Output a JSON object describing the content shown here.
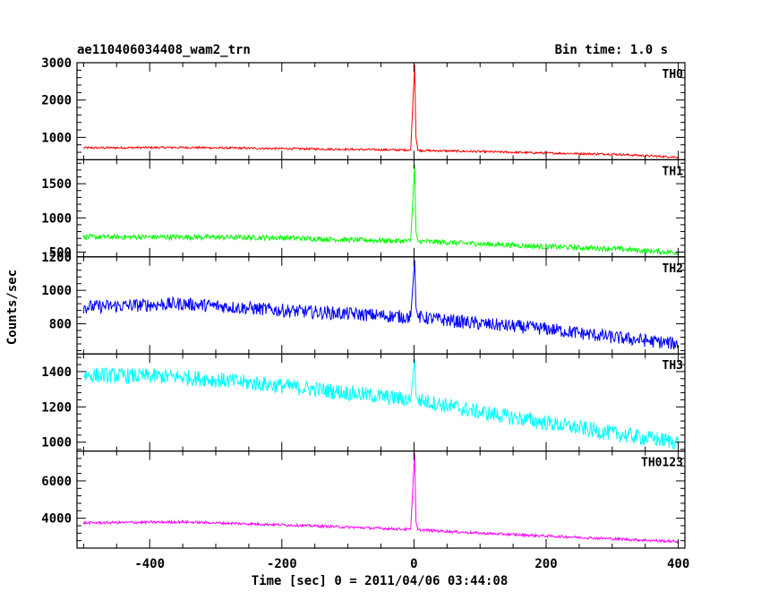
{
  "chart_data": {
    "type": "line",
    "title_left": "ae110406034408_wam2_trn",
    "title_right": "Bin time: 1.0 s",
    "xlabel": "Time [sec] 0 = 2011/04/06 03:44:08",
    "ylabel": "Counts/sec",
    "xlim": [
      -510,
      410
    ],
    "xticks": [
      -400,
      -200,
      0,
      200,
      400
    ],
    "grid": false,
    "panels": [
      {
        "name": "TH0",
        "color": "#ff0000",
        "ylim": [
          400,
          3000
        ],
        "yticks": [
          1000,
          2000,
          3000
        ],
        "points": [
          [
            -500,
            720
          ],
          [
            -350,
            730
          ],
          [
            -200,
            700
          ],
          [
            -100,
            680
          ],
          [
            -5,
            660
          ],
          [
            1,
            2950
          ],
          [
            3,
            1000
          ],
          [
            6,
            650
          ],
          [
            100,
            620
          ],
          [
            200,
            580
          ],
          [
            300,
            550
          ],
          [
            400,
            470
          ]
        ],
        "noise": 28
      },
      {
        "name": "TH1",
        "color": "#00ff00",
        "ylim": [
          430,
          1850
        ],
        "yticks": [
          500,
          1000,
          1500
        ],
        "points": [
          [
            -500,
            720
          ],
          [
            -350,
            720
          ],
          [
            -200,
            710
          ],
          [
            -100,
            680
          ],
          [
            -5,
            660
          ],
          [
            1,
            1780
          ],
          [
            3,
            800
          ],
          [
            6,
            660
          ],
          [
            100,
            620
          ],
          [
            200,
            580
          ],
          [
            300,
            550
          ],
          [
            400,
            490
          ]
        ],
        "noise": 38
      },
      {
        "name": "TH2",
        "color": "#0000ff",
        "ylim": [
          620,
          1200
        ],
        "yticks": [
          800,
          1000,
          1200
        ],
        "points": [
          [
            -500,
            900
          ],
          [
            -350,
            920
          ],
          [
            -200,
            880
          ],
          [
            -100,
            860
          ],
          [
            -5,
            840
          ],
          [
            1,
            1180
          ],
          [
            3,
            900
          ],
          [
            6,
            840
          ],
          [
            100,
            800
          ],
          [
            200,
            770
          ],
          [
            300,
            720
          ],
          [
            400,
            680
          ]
        ],
        "noise": 40
      },
      {
        "name": "TH3",
        "color": "#00ffff",
        "ylim": [
          950,
          1500
        ],
        "yticks": [
          1000,
          1200,
          1400
        ],
        "points": [
          [
            -500,
            1380
          ],
          [
            -350,
            1370
          ],
          [
            -200,
            1320
          ],
          [
            -100,
            1280
          ],
          [
            -5,
            1240
          ],
          [
            1,
            1470
          ],
          [
            3,
            1260
          ],
          [
            6,
            1240
          ],
          [
            100,
            1170
          ],
          [
            200,
            1110
          ],
          [
            300,
            1050
          ],
          [
            400,
            1000
          ]
        ],
        "noise": 45
      },
      {
        "name": "TH0123",
        "color": "#ff00ff",
        "ylim": [
          2400,
          7600
        ],
        "yticks": [
          4000,
          6000
        ],
        "points": [
          [
            -500,
            3750
          ],
          [
            -350,
            3800
          ],
          [
            -200,
            3650
          ],
          [
            -100,
            3520
          ],
          [
            -5,
            3400
          ],
          [
            1,
            7500
          ],
          [
            3,
            3800
          ],
          [
            6,
            3380
          ],
          [
            100,
            3200
          ],
          [
            200,
            3050
          ],
          [
            300,
            2900
          ],
          [
            400,
            2750
          ]
        ],
        "noise": 70
      }
    ]
  }
}
